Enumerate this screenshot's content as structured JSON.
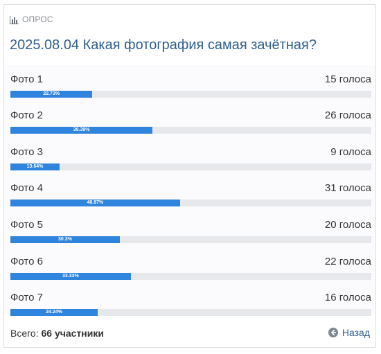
{
  "poll": {
    "header_label": "ОПРОС",
    "title": "2025.08.04 Какая фотография самая зачётная?",
    "options": [
      {
        "label": "Фото 1",
        "votes": "15 голоса",
        "percent_label": "22.73%",
        "percent": 22.73
      },
      {
        "label": "Фото 2",
        "votes": "26 голоса",
        "percent_label": "39.39%",
        "percent": 39.39
      },
      {
        "label": "Фото 3",
        "votes": "9 голоса",
        "percent_label": "13.64%",
        "percent": 13.64
      },
      {
        "label": "Фото 4",
        "votes": "31 голоса",
        "percent_label": "46.97%",
        "percent": 46.97
      },
      {
        "label": "Фото 5",
        "votes": "20 голоса",
        "percent_label": "30.3%",
        "percent": 30.3
      },
      {
        "label": "Фото 6",
        "votes": "22 голоса",
        "percent_label": "33.33%",
        "percent": 33.33
      },
      {
        "label": "Фото 7",
        "votes": "16 голоса",
        "percent_label": "24.24%",
        "percent": 24.24
      }
    ],
    "footer": {
      "total_prefix": "Всего:",
      "total_value": "66 участники",
      "back_label": "Назад"
    },
    "icons": {
      "header": "bar-chart-icon",
      "back": "arrow-left-circle-icon"
    },
    "colors": {
      "accent": "#2f84dd",
      "title": "#2f5f8f",
      "track": "#e6e8eb"
    }
  }
}
